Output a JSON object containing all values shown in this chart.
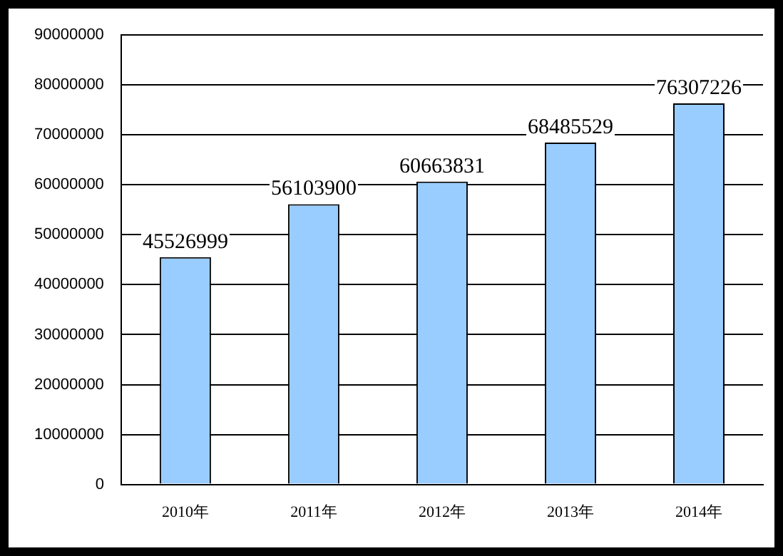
{
  "chart_data": {
    "type": "bar",
    "categories": [
      "2010年",
      "2011年",
      "2012年",
      "2013年",
      "2014年"
    ],
    "values": [
      45526999,
      56103900,
      60663831,
      68485529,
      76307226
    ],
    "color": "#99ccff",
    "ylim": [
      0,
      90000000
    ],
    "yticks": [
      0,
      10000000,
      20000000,
      30000000,
      40000000,
      50000000,
      60000000,
      70000000,
      80000000,
      90000000
    ],
    "grid": "y",
    "data_labels": true,
    "legend": false
  }
}
